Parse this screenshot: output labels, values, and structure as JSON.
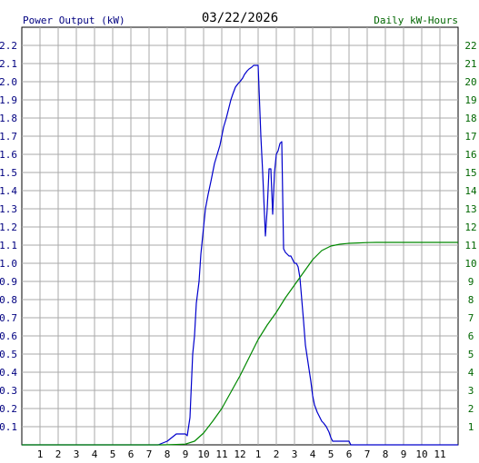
{
  "chart_data": {
    "type": "line",
    "title": "03/22/2026",
    "left_axis_label": "Power Output (kW)",
    "right_axis_label": "Daily kW-Hours",
    "x_tick_labels": [
      "1",
      "2",
      "3",
      "4",
      "5",
      "6",
      "7",
      "8",
      "9",
      "10",
      "11",
      "12",
      "1",
      "2",
      "3",
      "4",
      "5",
      "6",
      "7",
      "8",
      "9",
      "10",
      "11"
    ],
    "x_range_hours": [
      0,
      24
    ],
    "left_ylim": [
      0,
      2.3
    ],
    "left_ticks": [
      "0.1",
      "0.2",
      "0.3",
      "0.4",
      "0.5",
      "0.6",
      "0.7",
      "0.8",
      "0.9",
      "1.0",
      "1.1",
      "1.2",
      "1.3",
      "1.4",
      "1.5",
      "1.6",
      "1.7",
      "1.8",
      "1.9",
      "2.0",
      "2.1",
      "2.2"
    ],
    "right_ylim": [
      0,
      23
    ],
    "right_ticks": [
      "1",
      "2",
      "3",
      "4",
      "5",
      "6",
      "7",
      "8",
      "9",
      "10",
      "11",
      "12",
      "13",
      "14",
      "15",
      "16",
      "17",
      "18",
      "19",
      "20",
      "21",
      "22"
    ],
    "grid": true,
    "colors": {
      "power": "#0000cc",
      "energy": "#008800",
      "grid": "#aaaaaa",
      "axis_left": "#000080",
      "axis_right": "#006600"
    },
    "series": [
      {
        "name": "Power Output (kW)",
        "axis": "left",
        "x": [
          0,
          7.5,
          7.75,
          8.0,
          8.25,
          8.5,
          8.75,
          9.0,
          9.1,
          9.25,
          9.4,
          9.5,
          9.6,
          9.75,
          9.85,
          10.0,
          10.1,
          10.25,
          10.4,
          10.5,
          10.6,
          10.75,
          10.9,
          11.0,
          11.1,
          11.25,
          11.4,
          11.5,
          11.6,
          11.75,
          11.9,
          12.0,
          12.15,
          12.25,
          12.4,
          12.5,
          12.65,
          12.75,
          12.9,
          13.0,
          13.15,
          13.25,
          13.4,
          13.5,
          13.6,
          13.7,
          13.8,
          13.9,
          14.0,
          14.1,
          14.2,
          14.3,
          14.4,
          14.5,
          14.6,
          14.7,
          14.8,
          14.9,
          15.0,
          15.1,
          15.2,
          15.3,
          15.4,
          15.5,
          15.6,
          15.75,
          15.9,
          16.0,
          16.1,
          16.25,
          16.4,
          16.5,
          16.6,
          16.75,
          16.9,
          17.0,
          17.1,
          17.25,
          17.4,
          17.5,
          17.6,
          17.75,
          17.9,
          18.0,
          18.1,
          18.25,
          18.5,
          18.75,
          19.0,
          19.25,
          19.5,
          19.75,
          20.0,
          20.5,
          24
        ],
        "y": [
          0,
          0,
          0.01,
          0.02,
          0.04,
          0.06,
          0.06,
          0.06,
          0.05,
          0.15,
          0.5,
          0.6,
          0.78,
          0.9,
          1.05,
          1.2,
          1.3,
          1.38,
          1.45,
          1.5,
          1.55,
          1.6,
          1.65,
          1.7,
          1.75,
          1.8,
          1.86,
          1.9,
          1.93,
          1.97,
          1.99,
          2.0,
          2.02,
          2.04,
          2.06,
          2.07,
          2.08,
          2.09,
          2.09,
          2.09,
          1.7,
          1.5,
          1.15,
          1.3,
          1.52,
          1.52,
          1.27,
          1.5,
          1.6,
          1.62,
          1.66,
          1.67,
          1.08,
          1.06,
          1.05,
          1.04,
          1.04,
          1.02,
          1.0,
          1.0,
          0.98,
          0.92,
          0.8,
          0.68,
          0.55,
          0.45,
          0.35,
          0.27,
          0.22,
          0.18,
          0.15,
          0.13,
          0.12,
          0.1,
          0.07,
          0.04,
          0.02,
          0.02,
          0.02,
          0.02,
          0.02,
          0.02,
          0.02,
          0.02,
          0.0,
          0.0,
          0.0,
          0.0,
          0.0,
          0.0,
          0.0,
          0.0,
          0.0,
          0.0,
          0
        ]
      },
      {
        "name": "Daily kW-Hours",
        "axis": "right",
        "x": [
          0,
          7.8,
          8.5,
          9.0,
          9.5,
          10.0,
          10.5,
          11.0,
          11.5,
          12.0,
          12.5,
          13.0,
          13.5,
          14.0,
          14.5,
          15.0,
          15.5,
          16.0,
          16.5,
          17.0,
          17.5,
          18.0,
          18.5,
          19.0,
          19.5,
          20.0,
          20.5,
          24
        ],
        "y": [
          0,
          0,
          0.02,
          0.04,
          0.2,
          0.65,
          1.3,
          2.0,
          2.9,
          3.8,
          4.8,
          5.8,
          6.6,
          7.3,
          8.1,
          8.8,
          9.5,
          10.2,
          10.7,
          10.95,
          11.05,
          11.1,
          11.12,
          11.14,
          11.15,
          11.15,
          11.15,
          11.15
        ]
      }
    ]
  }
}
